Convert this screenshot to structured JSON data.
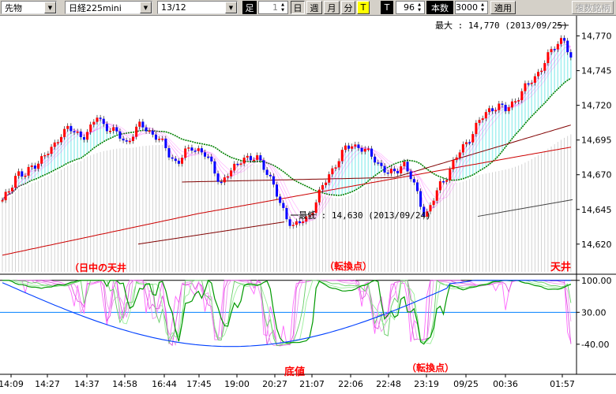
{
  "toolbar": {
    "instrument": "先物",
    "symbol": "日経225mini",
    "contract_month": "13/12",
    "ashi_label": "足",
    "period_value": "1",
    "tabs": [
      {
        "label": "日",
        "pressed": true
      },
      {
        "label": "週",
        "pressed": false
      },
      {
        "label": "月",
        "pressed": false
      },
      {
        "label": "分",
        "pressed": false
      },
      {
        "label": "T",
        "pressed": false,
        "highlight": true
      }
    ],
    "t_label": "T",
    "t_value": "96",
    "bars_label": "本数",
    "bars_value": "3000",
    "apply_label": "適用",
    "multi_symbol_label": "複数銘柄"
  },
  "annotations": {
    "day_high": "（日中の天井",
    "turning_point_top": "（転換点）",
    "top": "天井",
    "bottom": "底値",
    "turning_point_bottom": "（転換点）"
  },
  "chart_data": {
    "type": "candlestick",
    "price_axis": {
      "ticks": [
        14620,
        14645,
        14670,
        14695,
        14720,
        14745,
        14770
      ],
      "range": [
        14600,
        14780
      ]
    },
    "max_label": "最大 : 14,770 (2013/09/25)",
    "min_label": "最低 : 14,630 (2013/09/24)",
    "oscillator_axis": {
      "ticks": [
        "100.00",
        "30.00",
        "-40.00"
      ],
      "range": [
        -80,
        110
      ]
    },
    "time_labels": [
      "14:09",
      "14:27",
      "14:37",
      "14:58",
      "16:44",
      "17:45",
      "19:00",
      "20:27",
      "21:07",
      "22:06",
      "22:48",
      "23:19",
      "09/25",
      "00:36",
      "01:57"
    ],
    "close_path": [
      14650,
      14660,
      14672,
      14668,
      14676,
      14680,
      14684,
      14690,
      14700,
      14703,
      14700,
      14698,
      14702,
      14712,
      14706,
      14702,
      14698,
      14693,
      14700,
      14706,
      14702,
      14698,
      14692,
      14684,
      14678,
      14685,
      14690,
      14688,
      14683,
      14674,
      14664,
      14670,
      14676,
      14684,
      14680,
      14682,
      14676,
      14664,
      14650,
      14640,
      14632,
      14636,
      14640,
      14650,
      14662,
      14672,
      14680,
      14688,
      14692,
      14690,
      14686,
      14682,
      14676,
      14670,
      14672,
      14680,
      14668,
      14655,
      14640,
      14650,
      14662,
      14670,
      14680,
      14688,
      14696,
      14705,
      14712,
      14718,
      14720,
      14716,
      14722,
      14728,
      14734,
      14740,
      14748,
      14756,
      14764,
      14770,
      14752
    ],
    "colors": {
      "up": "#ff0000",
      "down": "#0000ff",
      "ma_green": "#008000",
      "ma_red": "#cc0000",
      "ma_dark": "#800000",
      "ma_gray": "#404040",
      "ribbon": "#ff00ff",
      "fill_cyan": "#a8f0f0",
      "fill_gray": "#c8c8c8"
    }
  }
}
